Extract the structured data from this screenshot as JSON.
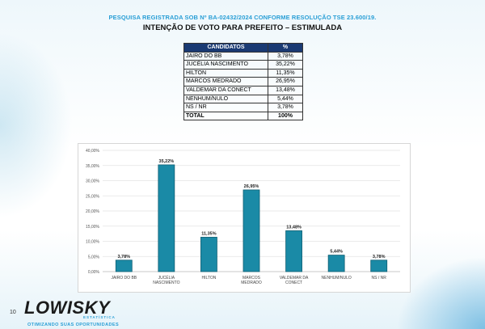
{
  "header": {
    "registro": "PESQUISA REGISTRADA SOB Nº BA-02432/2024 CONFORME RESOLUÇÃO TSE 23.600/19.",
    "titulo": "INTENÇÃO DE VOTO PARA PREFEITO – ESTIMULADA"
  },
  "tabela": {
    "col_candidatos": "CANDIDATOS",
    "col_pct": "%",
    "linhas": [
      {
        "nome": "JAIRO DO BB",
        "pct": "3,78%"
      },
      {
        "nome": "JUCÉLIA NASCIMENTO",
        "pct": "35,22%"
      },
      {
        "nome": "HILTON",
        "pct": "11,35%"
      },
      {
        "nome": "MARCOS MEDRADO",
        "pct": "26,95%"
      },
      {
        "nome": "VALDEMAR DA CONECT",
        "pct": "13,48%"
      },
      {
        "nome": "NENHUM/NULO",
        "pct": "5,44%"
      },
      {
        "nome": "NS / NR",
        "pct": "3,78%"
      }
    ],
    "total_label": "TOTAL",
    "total_pct": "100%"
  },
  "chart_data": {
    "type": "bar",
    "categories": [
      [
        "JAIRO DO BB"
      ],
      [
        "JUCÉLIA",
        "NASCIMENTO"
      ],
      [
        "HILTON"
      ],
      [
        "MARCOS",
        "MEDRADO"
      ],
      [
        "VALDEMAR DA",
        "CONECT"
      ],
      [
        "NENHUM/NULO"
      ],
      [
        "NS / NR"
      ]
    ],
    "values": [
      3.78,
      35.22,
      11.35,
      26.95,
      13.48,
      5.44,
      3.78
    ],
    "data_labels": [
      "3,78%",
      "35,22%",
      "11,35%",
      "26,95%",
      "13,48%",
      "5,44%",
      "3,78%"
    ],
    "y_ticks": [
      0,
      5,
      10,
      15,
      20,
      25,
      30,
      35,
      40
    ],
    "y_tick_labels": [
      "0,00%",
      "5,00%",
      "10,00%",
      "15,00%",
      "20,00%",
      "25,00%",
      "30,00%",
      "35,00%",
      "40,00%"
    ],
    "ylim": [
      0,
      40
    ],
    "grid": true,
    "legend": "none",
    "bar_color": "#1a8aa6",
    "bar_border": "#0f5f73"
  },
  "footer": {
    "page_number": "10",
    "logo_text": "LOWISKY",
    "logo_sub": "ESTATÍSTICA",
    "tagline": "OTIMIZANDO SUAS OPORTUNIDADES"
  }
}
